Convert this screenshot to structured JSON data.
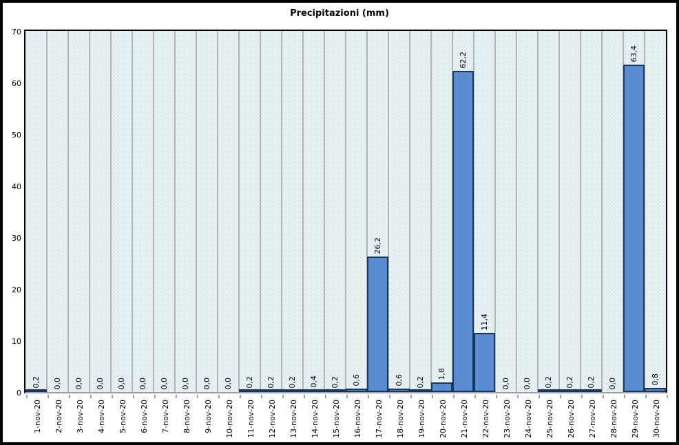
{
  "chart_data": {
    "type": "bar",
    "title": "Precipitazioni (mm)",
    "categories": [
      "1-nov-20",
      "2-nov-20",
      "3-nov-20",
      "4-nov-20",
      "5-nov-20",
      "6-nov-20",
      "7-nov-20",
      "8-nov-20",
      "9-nov-20",
      "10-nov-20",
      "11-nov-20",
      "12-nov-20",
      "13-nov-20",
      "14-nov-20",
      "15-nov-20",
      "16-nov-20",
      "17-nov-20",
      "18-nov-20",
      "19-nov-20",
      "20-nov-20",
      "21-nov-20",
      "22-nov-20",
      "23-nov-20",
      "24-nov-20",
      "25-nov-20",
      "26-nov-20",
      "27-nov-20",
      "28-nov-20",
      "29-nov-20",
      "30-nov-20"
    ],
    "values": [
      0.2,
      0,
      0,
      0,
      0,
      0,
      0,
      0,
      0,
      0,
      0.2,
      0.2,
      0.2,
      0.4,
      0.2,
      0.6,
      26.2,
      0.6,
      0.2,
      1.8,
      62.2,
      11.4,
      0,
      0,
      0.2,
      0.2,
      0.2,
      0,
      63.4,
      0.8
    ],
    "value_labels": [
      "0,2",
      "0,0",
      "0,0",
      "0,0",
      "0,0",
      "0,0",
      "0,0",
      "0,0",
      "0,0",
      "0,0",
      "0,2",
      "0,2",
      "0,2",
      "0,4",
      "0,2",
      "0,6",
      "26,2",
      "0,6",
      "0,2",
      "1,8",
      "62,2",
      "11,4",
      "0,0",
      "0,0",
      "0,2",
      "0,2",
      "0,2",
      "0,0",
      "63,4",
      "0,8"
    ],
    "xlabel": "",
    "ylabel": "",
    "ylim": [
      0,
      70
    ],
    "y_ticks": [
      0,
      10,
      20,
      30,
      40,
      50,
      60,
      70
    ],
    "grid": "vertical-only",
    "legend": "none",
    "colors": {
      "bar_fill": "#5a8cd2",
      "bar_border": "#17375e",
      "gridline": "#b3b3b3",
      "plot_check": "#cfe4ee",
      "axis_line": "#a0a0a0",
      "frame": "#000000",
      "text": "#000000"
    }
  }
}
